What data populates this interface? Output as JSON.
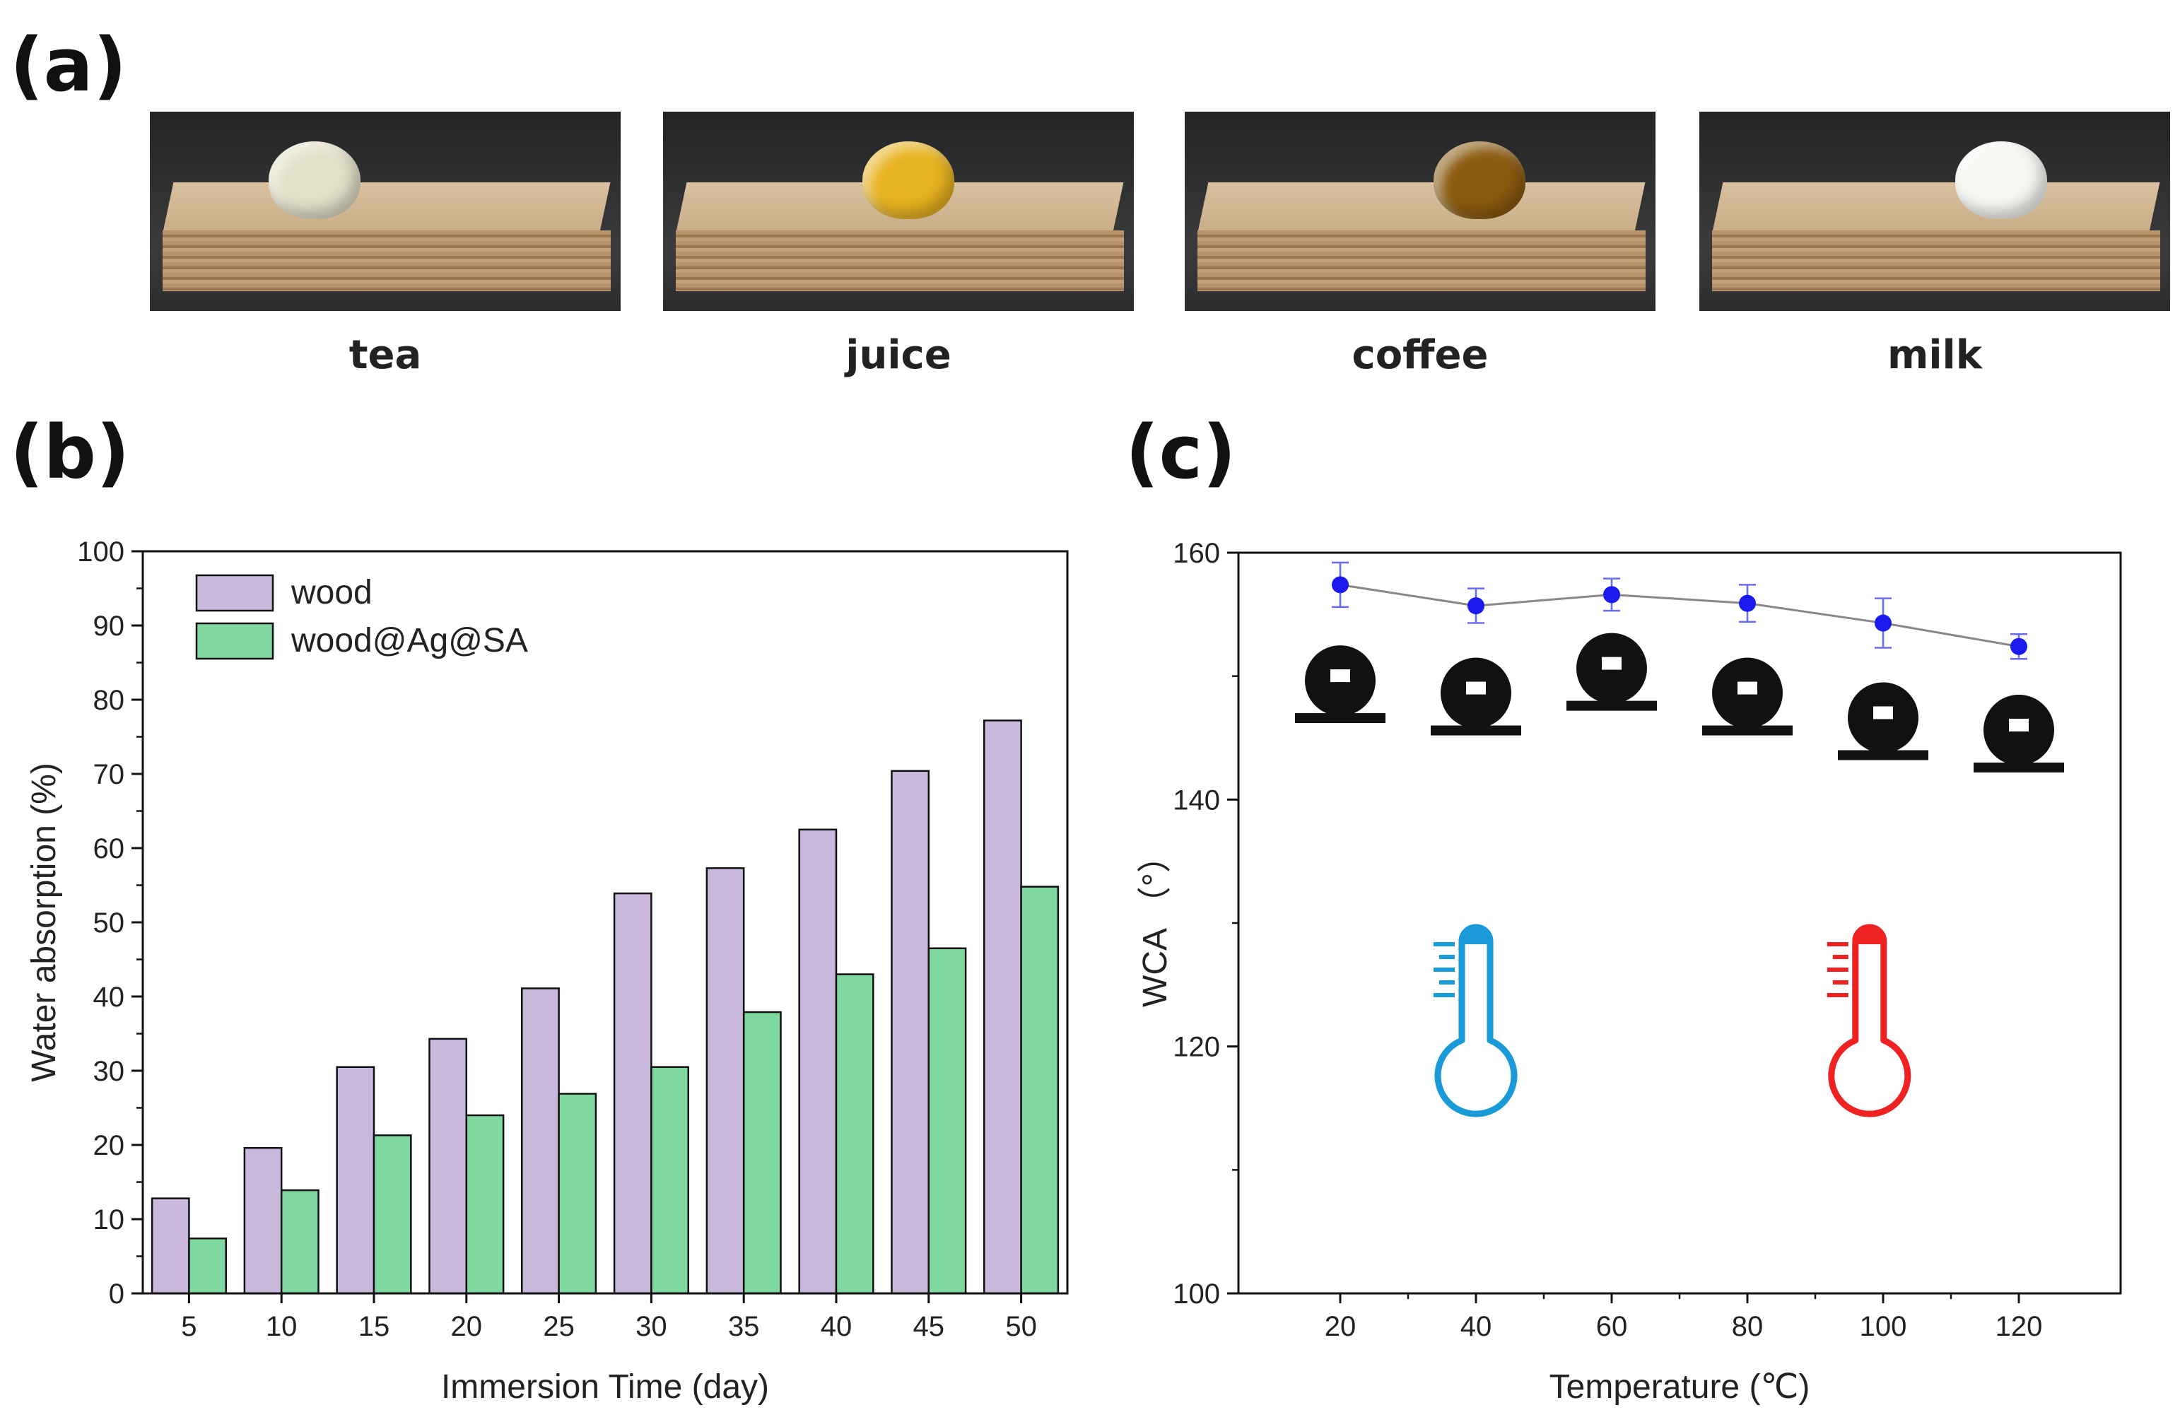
{
  "panels": {
    "a": "(a)",
    "b": "(b)",
    "c": "(c)"
  },
  "photos": [
    {
      "label": "tea",
      "drop_color": "#e3e0c8"
    },
    {
      "label": "juice",
      "drop_color": "#e8b320"
    },
    {
      "label": "coffee",
      "drop_color": "#8a5a10"
    },
    {
      "label": "milk",
      "drop_color": "#f6f6f2"
    }
  ],
  "chart_data": [
    {
      "type": "bar",
      "title": "",
      "xlabel": "Immersion Time (day)",
      "ylabel": "Water absorption (%)",
      "categories": [
        "5",
        "10",
        "15",
        "20",
        "25",
        "30",
        "35",
        "40",
        "45",
        "50"
      ],
      "series": [
        {
          "name": "wood",
          "color": "#c8b8dc",
          "values": [
            12.8,
            19.6,
            30.5,
            34.3,
            41.1,
            53.9,
            57.3,
            62.5,
            70.4,
            77.2
          ]
        },
        {
          "name": "wood@Ag@SA",
          "color": "#7fd8a0",
          "values": [
            7.4,
            13.9,
            21.3,
            24.0,
            26.9,
            30.5,
            37.9,
            43.0,
            46.5,
            54.8
          ]
        }
      ],
      "ylim": [
        0,
        100
      ],
      "yticks": [
        "0",
        "10",
        "20",
        "30",
        "40",
        "50",
        "60",
        "70",
        "80",
        "90",
        "100"
      ],
      "legend_position": "top-left"
    },
    {
      "type": "line",
      "title": "",
      "xlabel": "Temperature (℃)",
      "ylabel": "WCA （°）",
      "x": [
        20,
        40,
        60,
        80,
        100,
        120
      ],
      "y": [
        157.4,
        155.7,
        156.6,
        155.9,
        154.3,
        152.4
      ],
      "yerr": [
        1.8,
        1.4,
        1.3,
        1.5,
        2.0,
        1.0
      ],
      "xlim": [
        5,
        135
      ],
      "ylim": [
        100,
        160
      ],
      "xticks": [
        "20",
        "40",
        "60",
        "80",
        "100",
        "120"
      ],
      "yticks": [
        "100",
        "120",
        "140",
        "160"
      ],
      "marker_color": "#1a1aee",
      "line_color": "#888888",
      "droplets_note": [
        147,
        146,
        148,
        146,
        144,
        143
      ],
      "cold_thermometer_color": "#1a9ad6",
      "hot_thermometer_color": "#ee2222"
    }
  ]
}
